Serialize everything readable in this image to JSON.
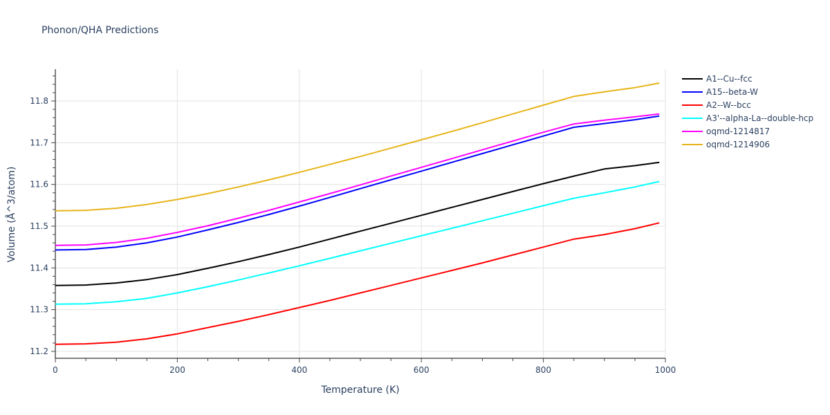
{
  "title": "Phonon/QHA Predictions",
  "chart_data": {
    "type": "line",
    "title": "Phonon/QHA Predictions",
    "xlabel": "Temperature (K)",
    "ylabel": "Volume (Å^3/atom)",
    "xlim": [
      0,
      1000
    ],
    "ylim": [
      11.18,
      11.88
    ],
    "xticks": [
      0,
      200,
      400,
      600,
      800,
      1000
    ],
    "yticks": [
      11.2,
      11.3,
      11.4,
      11.5,
      11.6,
      11.7,
      11.8
    ],
    "grid": true,
    "legend_position": "right",
    "x": [
      0,
      50,
      100,
      150,
      200,
      250,
      300,
      350,
      400,
      450,
      500,
      550,
      600,
      650,
      700,
      750,
      800,
      850,
      900,
      950,
      990
    ],
    "series": [
      {
        "name": "A1--Cu--fcc",
        "color": "#000000",
        "values": [
          11.358,
          11.359,
          11.364,
          11.372,
          11.384,
          11.399,
          11.415,
          11.432,
          11.45,
          11.469,
          11.488,
          11.507,
          11.526,
          11.545,
          11.564,
          11.583,
          11.602,
          11.62,
          11.637,
          11.645,
          11.653
        ]
      },
      {
        "name": "A15--beta-W",
        "color": "#0000ff",
        "values": [
          11.443,
          11.444,
          11.45,
          11.46,
          11.474,
          11.491,
          11.509,
          11.528,
          11.548,
          11.569,
          11.59,
          11.611,
          11.632,
          11.653,
          11.674,
          11.695,
          11.716,
          11.737,
          11.746,
          11.755,
          11.764
        ]
      },
      {
        "name": "A2--W--bcc",
        "color": "#ff0000",
        "values": [
          11.217,
          11.218,
          11.222,
          11.23,
          11.242,
          11.257,
          11.272,
          11.288,
          11.305,
          11.322,
          11.34,
          11.358,
          11.376,
          11.394,
          11.412,
          11.431,
          11.45,
          11.469,
          11.48,
          11.494,
          11.508
        ]
      },
      {
        "name": "A3'--alpha-La--double-hcp",
        "color": "#00ffff",
        "values": [
          11.313,
          11.314,
          11.319,
          11.327,
          11.34,
          11.355,
          11.371,
          11.388,
          11.405,
          11.423,
          11.441,
          11.459,
          11.477,
          11.495,
          11.513,
          11.531,
          11.549,
          11.567,
          11.58,
          11.594,
          11.607
        ]
      },
      {
        "name": "oqmd-1214817",
        "color": "#ff00ff",
        "values": [
          11.454,
          11.455,
          11.461,
          11.471,
          11.485,
          11.501,
          11.519,
          11.538,
          11.558,
          11.578,
          11.599,
          11.62,
          11.641,
          11.662,
          11.683,
          11.704,
          11.725,
          11.745,
          11.754,
          11.762,
          11.769
        ]
      },
      {
        "name": "oqmd-1214906",
        "color": "#e6b418",
        "values": [
          11.537,
          11.538,
          11.543,
          11.552,
          11.564,
          11.578,
          11.594,
          11.611,
          11.629,
          11.648,
          11.667,
          11.687,
          11.707,
          11.727,
          11.748,
          11.769,
          11.79,
          11.811,
          11.822,
          11.832,
          11.843
        ]
      }
    ]
  }
}
